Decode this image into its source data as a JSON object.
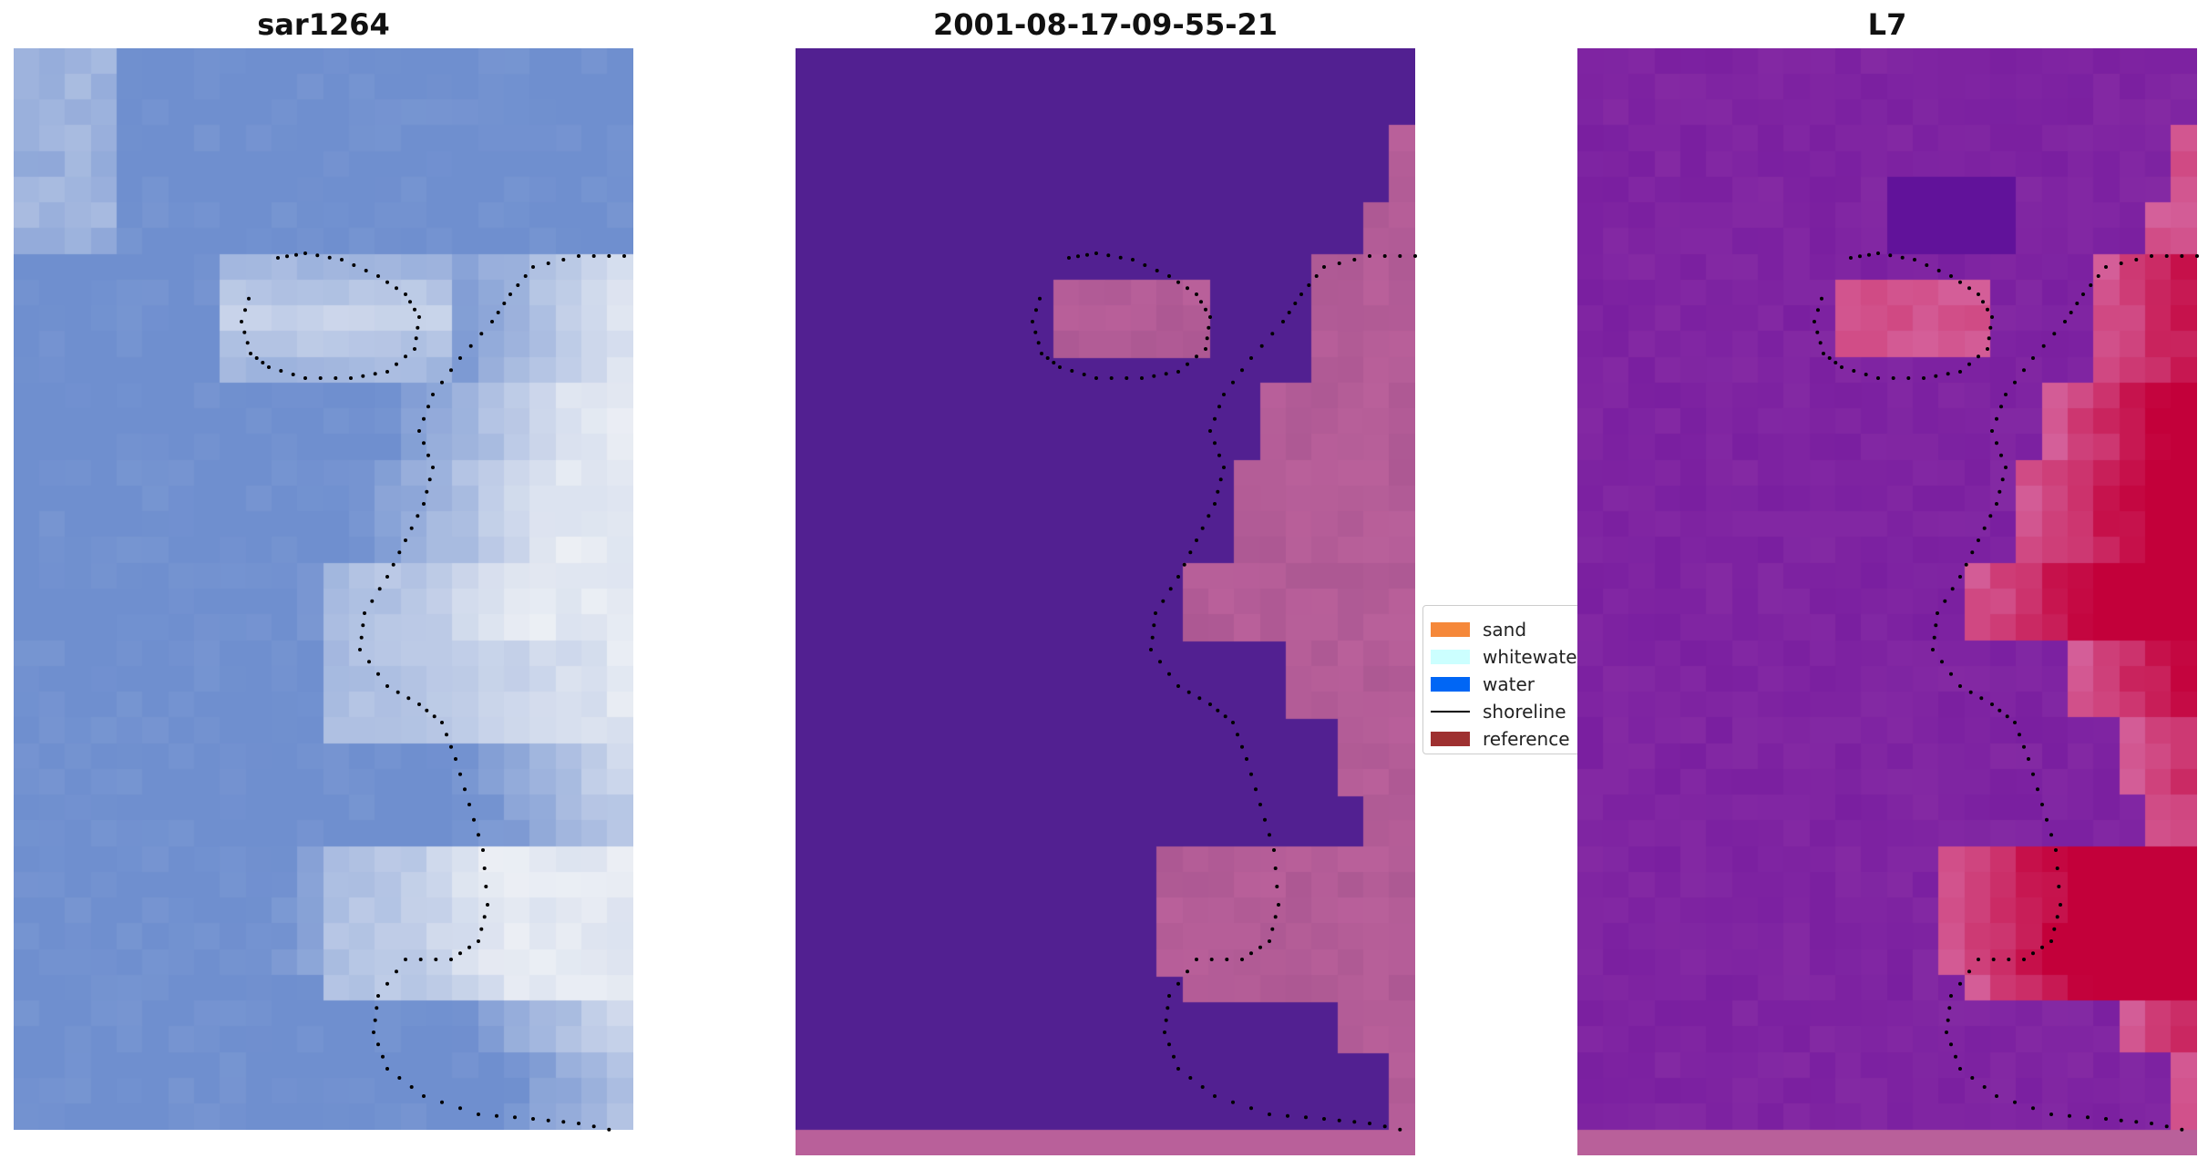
{
  "panels": [
    {
      "title": "sar1264",
      "style": "rgb-satellite"
    },
    {
      "title": "2001-08-17-09-55-21",
      "style": "classified"
    },
    {
      "title": "L7",
      "style": "index-map"
    }
  ],
  "legend": {
    "items": [
      {
        "label": "sand",
        "color": "#f5883a",
        "kind": "patch"
      },
      {
        "label": "whitewater",
        "color": "#ccffff",
        "kind": "patch"
      },
      {
        "label": "water",
        "color": "#0066f5",
        "kind": "patch"
      },
      {
        "label": "shoreline",
        "color": "#000000",
        "kind": "line"
      },
      {
        "label": "reference",
        "color": "#9e3030",
        "kind": "patch"
      }
    ]
  },
  "colors": {
    "rgb_water": "#6f8fcf",
    "rgb_foam": "#f1f3f6",
    "class_water": "#522091",
    "class_land": "#b9609a",
    "index_low": "#7a1fa0",
    "index_high": "#c3003a",
    "index_mid": "#d4609a",
    "shoreline_points": "#000000"
  }
}
